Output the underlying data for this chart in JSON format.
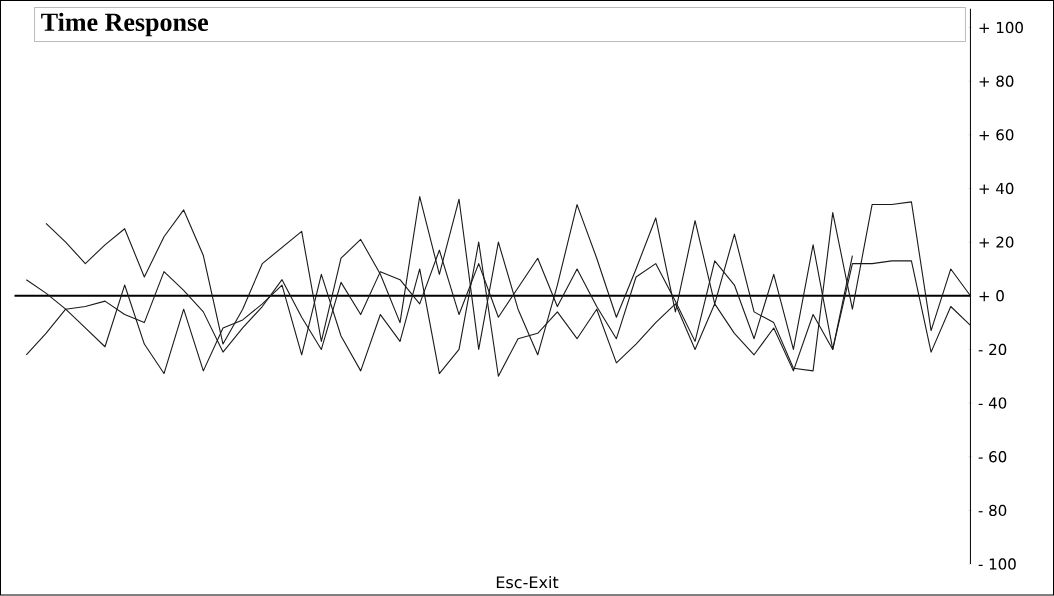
{
  "chart_data": {
    "type": "line",
    "title": "Time Response",
    "annotations": [
      "Esc-Exit"
    ],
    "categories": [
      null,
      null,
      null,
      null,
      null,
      null,
      null,
      null,
      null,
      null,
      null,
      null,
      null,
      null,
      null,
      null,
      null,
      null,
      null,
      null,
      null,
      null,
      null,
      null,
      null,
      null,
      null,
      null,
      null,
      null,
      null,
      null,
      null,
      null,
      null,
      null,
      null,
      null,
      null,
      null,
      null,
      null,
      null,
      null,
      null,
      null,
      null,
      null,
      null
    ],
    "ylim": [
      -100,
      107
    ],
    "yticks": [
      {
        "value": 100,
        "label": "+ 100"
      },
      {
        "value": 80,
        "label": "+ 80"
      },
      {
        "value": 60,
        "label": "+ 60"
      },
      {
        "value": 40,
        "label": "+ 40"
      },
      {
        "value": 20,
        "label": "+ 20"
      },
      {
        "value": 0,
        "label": "+ 0"
      },
      {
        "value": -20,
        "label": "- 20"
      },
      {
        "value": -40,
        "label": "- 40"
      },
      {
        "value": -60,
        "label": "- 60"
      },
      {
        "value": -80,
        "label": "- 80"
      },
      {
        "value": -100,
        "label": "- 100"
      }
    ],
    "tick_labels": "y",
    "marker": "none",
    "line_style": "solid",
    "series": [
      {
        "color": "#1a1a1a",
        "values": [
          null,
          27,
          20,
          12,
          19,
          25,
          7,
          22,
          32,
          15,
          -18,
          -5,
          12,
          18,
          24,
          -17,
          14,
          21,
          8,
          -10,
          37,
          8,
          36,
          -20,
          20,
          -5,
          -22,
          4,
          34,
          14,
          -8,
          10,
          29,
          -6,
          28,
          -3,
          23,
          -6,
          -10,
          -27,
          -28,
          31,
          -5,
          34,
          34,
          35,
          -13,
          10,
          0
        ]
      },
      {
        "color": "#1a1a1a",
        "values": [
          -22,
          -14,
          -5,
          -12,
          -19,
          4,
          -18,
          -29,
          -5,
          -28,
          -12,
          -9,
          -3,
          4,
          -22,
          8,
          -15,
          -28,
          -7,
          -17,
          10,
          -29,
          -20,
          20,
          -30,
          -16,
          -14,
          -6,
          -16,
          -5,
          -25,
          -18,
          -10,
          -3,
          -20,
          -3,
          -14,
          -22,
          -12,
          -28,
          -7,
          -20,
          12,
          12,
          13,
          13,
          -21,
          -4,
          -11
        ]
      },
      {
        "color": "#1a1a1a",
        "values": [
          6,
          1,
          -5,
          -4,
          -2,
          -7,
          -10,
          9,
          2,
          -6,
          -21,
          -12,
          -4,
          6,
          -8,
          -20,
          5,
          -7,
          9,
          6,
          -3,
          17,
          -7,
          12,
          -8,
          3,
          14,
          -4,
          10,
          -4,
          -16,
          7,
          12,
          -2,
          -17,
          13,
          4,
          -16,
          8,
          -20,
          19,
          -20,
          15,
          null,
          null,
          null,
          null,
          null,
          null
        ]
      }
    ]
  }
}
